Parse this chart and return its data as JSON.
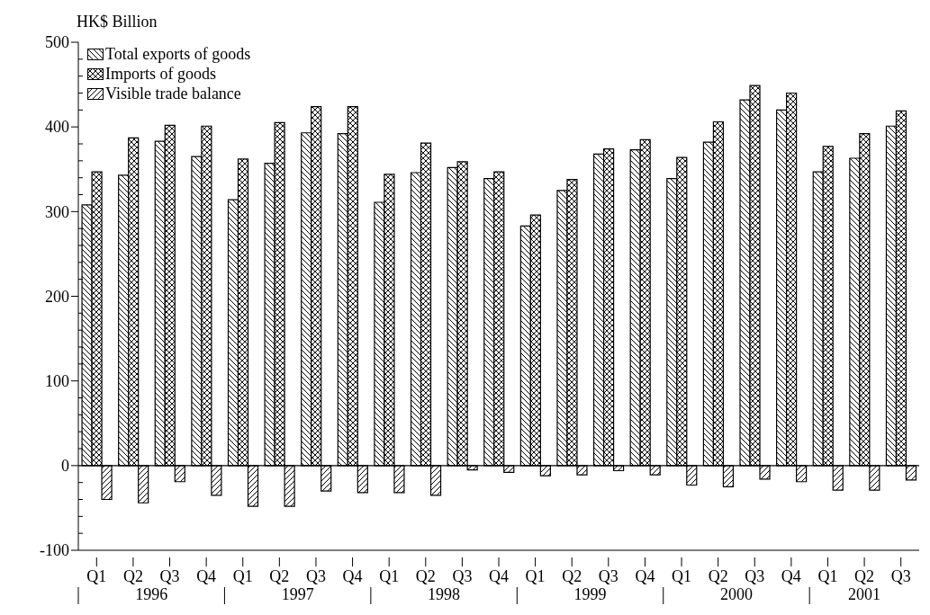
{
  "chart_data": {
    "type": "bar",
    "ylabel": "HK$ Billion",
    "categories": [
      "Q1",
      "Q2",
      "Q3",
      "Q4",
      "Q1",
      "Q2",
      "Q3",
      "Q4",
      "Q1",
      "Q2",
      "Q3",
      "Q4",
      "Q1",
      "Q2",
      "Q3",
      "Q4",
      "Q1",
      "Q2",
      "Q3",
      "Q4",
      "Q1",
      "Q2",
      "Q3"
    ],
    "annotations": [
      "1996",
      "1997",
      "1998",
      "1999",
      "2000",
      "2001"
    ],
    "series": [
      {
        "name": "Total exports of goods",
        "color": "#000000",
        "values": [
          308,
          343,
          383,
          365,
          314,
          357,
          393,
          392,
          311,
          346,
          352,
          339,
          283,
          325,
          368,
          373,
          339,
          382,
          432,
          420,
          347,
          363,
          401
        ]
      },
      {
        "name": "Imports of goods",
        "color": "#000000",
        "values": [
          347,
          387,
          402,
          401,
          362,
          405,
          424,
          424,
          344,
          381,
          359,
          347,
          296,
          338,
          374,
          385,
          364,
          406,
          449,
          440,
          377,
          392,
          419
        ]
      },
      {
        "name": "Visible trade balance",
        "color": "#000000",
        "values": [
          -40,
          -44,
          -19,
          -35,
          -48,
          -48,
          -30,
          -32,
          -32,
          -35,
          -5,
          -8,
          -12,
          -11,
          -6,
          -11,
          -23,
          -25,
          -16,
          -19,
          -29,
          -29,
          -17
        ]
      }
    ],
    "ylim": [
      -100,
      500
    ],
    "yticks": [
      -100,
      {
        "value": -80,
        "label": null
      },
      {
        "value": -60,
        "label": null
      },
      {
        "value": -40,
        "label": null
      },
      {
        "value": -20,
        "label": null
      },
      0,
      {
        "value": 20,
        "label": null
      },
      {
        "value": 40,
        "label": null
      },
      {
        "value": 60,
        "label": null
      },
      {
        "value": 80,
        "label": null
      },
      100,
      {
        "value": 120,
        "label": null
      },
      {
        "value": 140,
        "label": null
      },
      {
        "value": 160,
        "label": null
      },
      {
        "value": 180,
        "label": null
      },
      200,
      {
        "value": 220,
        "label": null
      },
      {
        "value": 240,
        "label": null
      },
      {
        "value": 260,
        "label": null
      },
      {
        "value": 280,
        "label": null
      },
      300,
      {
        "value": 320,
        "label": null
      },
      {
        "value": 340,
        "label": null
      },
      {
        "value": 360,
        "label": null
      },
      {
        "value": 380,
        "label": null
      },
      400,
      {
        "value": 420,
        "label": null
      },
      {
        "value": 440,
        "label": null
      },
      {
        "value": 460,
        "label": null
      },
      {
        "value": 480,
        "label": null
      },
      500
    ],
    "ref_lines": [
      {
        "axis": "y",
        "value": 0
      }
    ],
    "grid": false,
    "legend": "top left"
  }
}
